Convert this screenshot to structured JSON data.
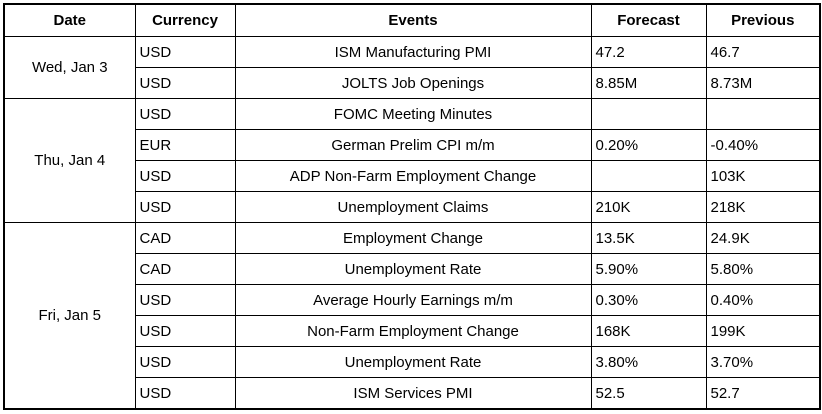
{
  "headers": {
    "date": "Date",
    "currency": "Currency",
    "events": "Events",
    "forecast": "Forecast",
    "previous": "Previous"
  },
  "days": [
    {
      "date": "Wed, Jan 3",
      "rows": [
        {
          "currency": "USD",
          "event": "ISM Manufacturing PMI",
          "forecast": "47.2",
          "previous": "46.7"
        },
        {
          "currency": "USD",
          "event": "JOLTS Job Openings",
          "forecast": "8.85M",
          "previous": "8.73M"
        }
      ]
    },
    {
      "date": "Thu, Jan 4",
      "rows": [
        {
          "currency": "USD",
          "event": "FOMC Meeting Minutes",
          "forecast": "",
          "previous": ""
        },
        {
          "currency": "EUR",
          "event": "German Prelim CPI m/m",
          "forecast": "0.20%",
          "previous": "-0.40%"
        },
        {
          "currency": "USD",
          "event": "ADP Non-Farm Employment Change",
          "forecast": "",
          "previous": "103K"
        },
        {
          "currency": "USD",
          "event": "Unemployment Claims",
          "forecast": "210K",
          "previous": "218K"
        }
      ]
    },
    {
      "date": "Fri, Jan 5",
      "rows": [
        {
          "currency": "CAD",
          "event": "Employment Change",
          "forecast": "13.5K",
          "previous": "24.9K"
        },
        {
          "currency": "CAD",
          "event": "Unemployment Rate",
          "forecast": "5.90%",
          "previous": "5.80%"
        },
        {
          "currency": "USD",
          "event": "Average Hourly Earnings m/m",
          "forecast": "0.30%",
          "previous": "0.40%"
        },
        {
          "currency": "USD",
          "event": "Non-Farm Employment Change",
          "forecast": "168K",
          "previous": "199K"
        },
        {
          "currency": "USD",
          "event": "Unemployment Rate",
          "forecast": "3.80%",
          "previous": "3.70%"
        },
        {
          "currency": "USD",
          "event": "ISM Services PMI",
          "forecast": "52.5",
          "previous": "52.7"
        }
      ]
    }
  ]
}
